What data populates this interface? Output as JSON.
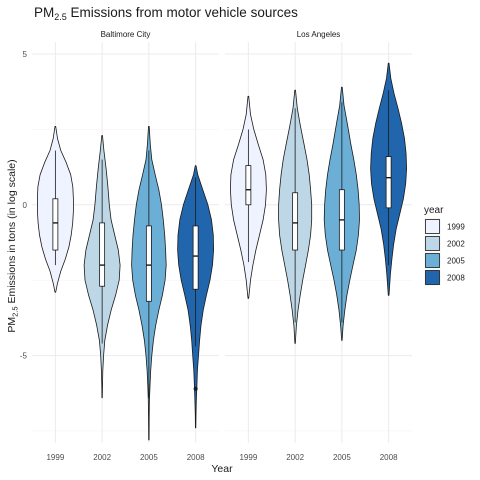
{
  "chart_data": {
    "type": "violin",
    "title": {
      "prefix": "PM",
      "subscript": "2.5",
      "suffix": " Emissions from motor vehicle sources"
    },
    "ylabel": {
      "prefix": "PM",
      "subscript": "2.5",
      "suffix": " Emissions in tons (in log scale)"
    },
    "xlabel": "Year",
    "yticks": [
      "-5",
      "0",
      "5"
    ],
    "ylim": [
      -7.9,
      5.4
    ],
    "grid": true,
    "legend": {
      "title": "year",
      "position": "right",
      "entries": [
        "1999",
        "2002",
        "2005",
        "2008"
      ]
    },
    "colors": {
      "1999": "#eff3ff",
      "2002": "#bdd7e7",
      "2005": "#6baed6",
      "2008": "#2166ac"
    },
    "facets": [
      {
        "name": "Baltimore City",
        "violins": [
          {
            "year": "1999",
            "min": -2.9,
            "max": 2.6,
            "q1": -1.5,
            "median": -0.6,
            "q3": 0.2,
            "whisker_low": -2.0,
            "whisker_high": 1.8,
            "outliers": [],
            "shape": [
              [
                2.6,
                0.02
              ],
              [
                2.2,
                0.12
              ],
              [
                1.8,
                0.3
              ],
              [
                1.4,
                0.6
              ],
              [
                1.0,
                0.85
              ],
              [
                0.6,
                0.97
              ],
              [
                0.2,
                1.0
              ],
              [
                -0.2,
                1.0
              ],
              [
                -0.6,
                0.96
              ],
              [
                -1.0,
                0.88
              ],
              [
                -1.4,
                0.75
              ],
              [
                -1.8,
                0.55
              ],
              [
                -2.2,
                0.3
              ],
              [
                -2.6,
                0.12
              ],
              [
                -2.9,
                0.02
              ]
            ]
          },
          {
            "year": "2002",
            "min": -6.4,
            "max": 2.3,
            "q1": -2.7,
            "median": -2.0,
            "q3": -0.6,
            "whisker_low": -4.6,
            "whisker_high": 1.5,
            "outliers": [],
            "shape": [
              [
                2.3,
                0.02
              ],
              [
                1.8,
                0.1
              ],
              [
                1.2,
                0.22
              ],
              [
                0.6,
                0.32
              ],
              [
                0.0,
                0.4
              ],
              [
                -0.5,
                0.5
              ],
              [
                -1.0,
                0.7
              ],
              [
                -1.5,
                0.9
              ],
              [
                -2.0,
                1.0
              ],
              [
                -2.5,
                0.95
              ],
              [
                -3.0,
                0.75
              ],
              [
                -3.5,
                0.5
              ],
              [
                -4.0,
                0.3
              ],
              [
                -4.5,
                0.15
              ],
              [
                -5.0,
                0.08
              ],
              [
                -5.5,
                0.04
              ],
              [
                -6.0,
                0.02
              ],
              [
                -6.4,
                0.01
              ]
            ]
          },
          {
            "year": "2005",
            "min": -7.8,
            "max": 2.6,
            "q1": -3.2,
            "median": -2.0,
            "q3": -0.7,
            "whisker_low": -6.4,
            "whisker_high": 1.8,
            "outliers": [],
            "shape": [
              [
                2.6,
                0.02
              ],
              [
                2.0,
                0.08
              ],
              [
                1.5,
                0.16
              ],
              [
                1.0,
                0.35
              ],
              [
                0.5,
                0.55
              ],
              [
                0.0,
                0.7
              ],
              [
                -0.5,
                0.8
              ],
              [
                -1.0,
                0.88
              ],
              [
                -1.5,
                0.93
              ],
              [
                -2.0,
                0.96
              ],
              [
                -2.5,
                0.9
              ],
              [
                -3.0,
                0.75
              ],
              [
                -3.5,
                0.55
              ],
              [
                -4.0,
                0.38
              ],
              [
                -4.5,
                0.25
              ],
              [
                -5.0,
                0.16
              ],
              [
                -5.5,
                0.1
              ],
              [
                -6.0,
                0.06
              ],
              [
                -6.5,
                0.03
              ],
              [
                -7.0,
                0.02
              ],
              [
                -7.8,
                0.01
              ]
            ]
          },
          {
            "year": "2008",
            "min": -7.4,
            "max": 1.3,
            "q1": -2.8,
            "median": -1.7,
            "q3": -0.7,
            "whisker_low": -4.7,
            "whisker_high": 0.9,
            "outliers": [
              -6.1
            ],
            "shape": [
              [
                1.3,
                0.02
              ],
              [
                1.0,
                0.12
              ],
              [
                0.5,
                0.4
              ],
              [
                0.0,
                0.68
              ],
              [
                -0.5,
                0.88
              ],
              [
                -1.0,
                0.98
              ],
              [
                -1.5,
                1.0
              ],
              [
                -2.0,
                0.94
              ],
              [
                -2.5,
                0.8
              ],
              [
                -3.0,
                0.6
              ],
              [
                -3.5,
                0.42
              ],
              [
                -4.0,
                0.3
              ],
              [
                -4.5,
                0.22
              ],
              [
                -5.0,
                0.16
              ],
              [
                -5.5,
                0.1
              ],
              [
                -6.0,
                0.07
              ],
              [
                -6.5,
                0.04
              ],
              [
                -7.0,
                0.02
              ],
              [
                -7.4,
                0.01
              ]
            ]
          }
        ]
      },
      {
        "name": "Los Angeles",
        "violins": [
          {
            "year": "1999",
            "min": -3.1,
            "max": 3.6,
            "q1": 0.0,
            "median": 0.5,
            "q3": 1.3,
            "whisker_low": -1.9,
            "whisker_high": 2.5,
            "outliers": [],
            "shape": [
              [
                3.6,
                0.02
              ],
              [
                3.0,
                0.12
              ],
              [
                2.5,
                0.3
              ],
              [
                2.0,
                0.55
              ],
              [
                1.5,
                0.82
              ],
              [
                1.0,
                0.97
              ],
              [
                0.5,
                1.0
              ],
              [
                0.0,
                0.95
              ],
              [
                -0.5,
                0.82
              ],
              [
                -1.0,
                0.62
              ],
              [
                -1.5,
                0.42
              ],
              [
                -2.0,
                0.25
              ],
              [
                -2.5,
                0.12
              ],
              [
                -3.1,
                0.02
              ]
            ]
          },
          {
            "year": "2002",
            "min": -4.6,
            "max": 3.8,
            "q1": -1.5,
            "median": -0.6,
            "q3": 0.4,
            "whisker_low": -3.9,
            "whisker_high": 3.2,
            "outliers": [],
            "shape": [
              [
                3.8,
                0.02
              ],
              [
                3.2,
                0.12
              ],
              [
                2.6,
                0.3
              ],
              [
                2.0,
                0.5
              ],
              [
                1.5,
                0.66
              ],
              [
                1.0,
                0.78
              ],
              [
                0.5,
                0.86
              ],
              [
                0.0,
                0.92
              ],
              [
                -0.5,
                0.92
              ],
              [
                -1.0,
                0.86
              ],
              [
                -1.5,
                0.74
              ],
              [
                -2.0,
                0.58
              ],
              [
                -2.5,
                0.42
              ],
              [
                -3.0,
                0.28
              ],
              [
                -3.5,
                0.16
              ],
              [
                -4.0,
                0.07
              ],
              [
                -4.6,
                0.01
              ]
            ]
          },
          {
            "year": "2005",
            "min": -4.5,
            "max": 3.9,
            "q1": -1.5,
            "median": -0.5,
            "q3": 0.5,
            "whisker_low": -3.9,
            "whisker_high": 3.4,
            "outliers": [],
            "shape": [
              [
                3.9,
                0.02
              ],
              [
                3.3,
                0.12
              ],
              [
                2.7,
                0.3
              ],
              [
                2.0,
                0.5
              ],
              [
                1.5,
                0.66
              ],
              [
                1.0,
                0.8
              ],
              [
                0.5,
                0.9
              ],
              [
                0.0,
                0.96
              ],
              [
                -0.5,
                0.98
              ],
              [
                -1.0,
                0.92
              ],
              [
                -1.5,
                0.8
              ],
              [
                -2.0,
                0.62
              ],
              [
                -2.5,
                0.44
              ],
              [
                -3.0,
                0.28
              ],
              [
                -3.5,
                0.16
              ],
              [
                -4.0,
                0.07
              ],
              [
                -4.5,
                0.01
              ]
            ]
          },
          {
            "year": "2008",
            "min": -3.0,
            "max": 4.7,
            "q1": -0.1,
            "median": 0.9,
            "q3": 1.6,
            "whisker_low": -2.0,
            "whisker_high": 3.8,
            "outliers": [],
            "shape": [
              [
                4.7,
                0.02
              ],
              [
                4.2,
                0.12
              ],
              [
                3.7,
                0.3
              ],
              [
                3.2,
                0.52
              ],
              [
                2.7,
                0.72
              ],
              [
                2.2,
                0.88
              ],
              [
                1.7,
                0.97
              ],
              [
                1.2,
                1.0
              ],
              [
                0.7,
                0.95
              ],
              [
                0.2,
                0.82
              ],
              [
                -0.3,
                0.62
              ],
              [
                -0.8,
                0.42
              ],
              [
                -1.3,
                0.28
              ],
              [
                -1.8,
                0.18
              ],
              [
                -2.3,
                0.1
              ],
              [
                -3.0,
                0.02
              ]
            ]
          }
        ]
      }
    ]
  }
}
